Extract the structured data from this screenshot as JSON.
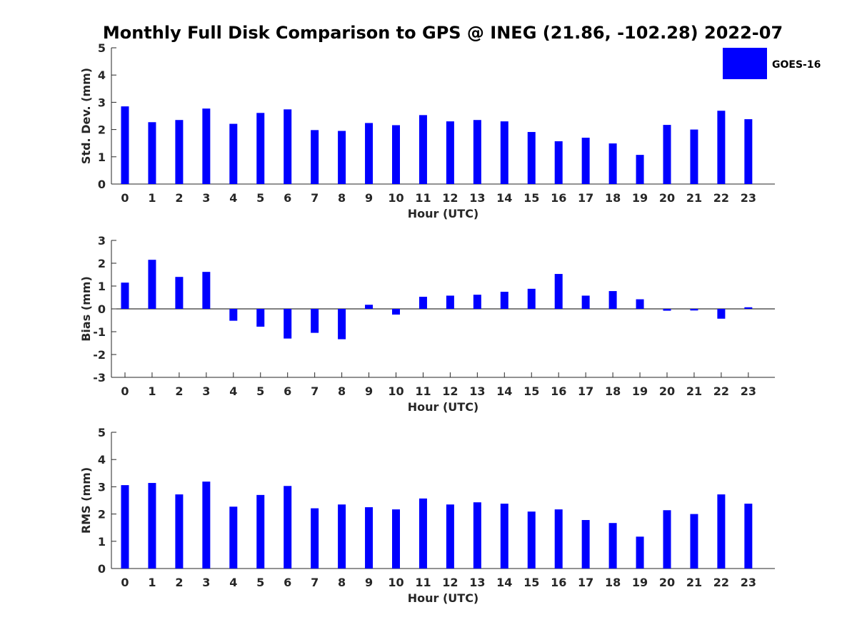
{
  "title": "Monthly Full Disk Comparison to GPS @ INEG (21.86, -102.28) 2022-07",
  "legend": {
    "label": "GOES-16",
    "color": "#0000ff",
    "placement": "top-right"
  },
  "chart_data": [
    {
      "type": "bar",
      "xlabel": "Hour (UTC)",
      "ylabel": "Std. Dev. (mm)",
      "ylim": [
        0,
        5
      ],
      "yticks": [
        0,
        1,
        2,
        3,
        4,
        5
      ],
      "categories": [
        "0",
        "1",
        "2",
        "3",
        "4",
        "5",
        "6",
        "7",
        "8",
        "9",
        "10",
        "11",
        "12",
        "13",
        "14",
        "15",
        "16",
        "17",
        "18",
        "19",
        "20",
        "21",
        "22",
        "23"
      ],
      "series": [
        {
          "name": "GOES-16",
          "color": "#0000ff",
          "values": [
            2.85,
            2.27,
            2.35,
            2.77,
            2.21,
            2.61,
            2.74,
            1.98,
            1.95,
            2.24,
            2.16,
            2.53,
            2.3,
            2.35,
            2.3,
            1.91,
            1.57,
            1.7,
            1.49,
            1.07,
            2.17,
            2.0,
            2.69,
            2.38
          ]
        }
      ]
    },
    {
      "type": "bar",
      "xlabel": "Hour (UTC)",
      "ylabel": "Bias (mm)",
      "ylim": [
        -3,
        3
      ],
      "yticks": [
        -3,
        -2,
        -1,
        0,
        1,
        2,
        3
      ],
      "categories": [
        "0",
        "1",
        "2",
        "3",
        "4",
        "5",
        "6",
        "7",
        "8",
        "9",
        "10",
        "11",
        "12",
        "13",
        "14",
        "15",
        "16",
        "17",
        "18",
        "19",
        "20",
        "21",
        "22",
        "23"
      ],
      "series": [
        {
          "name": "GOES-16",
          "color": "#0000ff",
          "values": [
            1.15,
            2.15,
            1.4,
            1.62,
            -0.52,
            -0.78,
            -1.3,
            -1.05,
            -1.33,
            0.18,
            -0.25,
            0.53,
            0.58,
            0.62,
            0.75,
            0.88,
            1.53,
            0.58,
            0.78,
            0.42,
            -0.08,
            -0.07,
            -0.43,
            0.07
          ]
        }
      ]
    },
    {
      "type": "bar",
      "xlabel": "Hour (UTC)",
      "ylabel": "RMS (mm)",
      "ylim": [
        0,
        5
      ],
      "yticks": [
        0,
        1,
        2,
        3,
        4,
        5
      ],
      "categories": [
        "0",
        "1",
        "2",
        "3",
        "4",
        "5",
        "6",
        "7",
        "8",
        "9",
        "10",
        "11",
        "12",
        "13",
        "14",
        "15",
        "16",
        "17",
        "18",
        "19",
        "20",
        "21",
        "22",
        "23"
      ],
      "series": [
        {
          "name": "GOES-16",
          "color": "#0000ff",
          "values": [
            3.06,
            3.14,
            2.72,
            3.19,
            2.27,
            2.7,
            3.03,
            2.21,
            2.35,
            2.25,
            2.17,
            2.57,
            2.35,
            2.43,
            2.38,
            2.09,
            2.17,
            1.78,
            1.67,
            1.17,
            2.14,
            2.0,
            2.72,
            2.38
          ]
        }
      ]
    }
  ]
}
